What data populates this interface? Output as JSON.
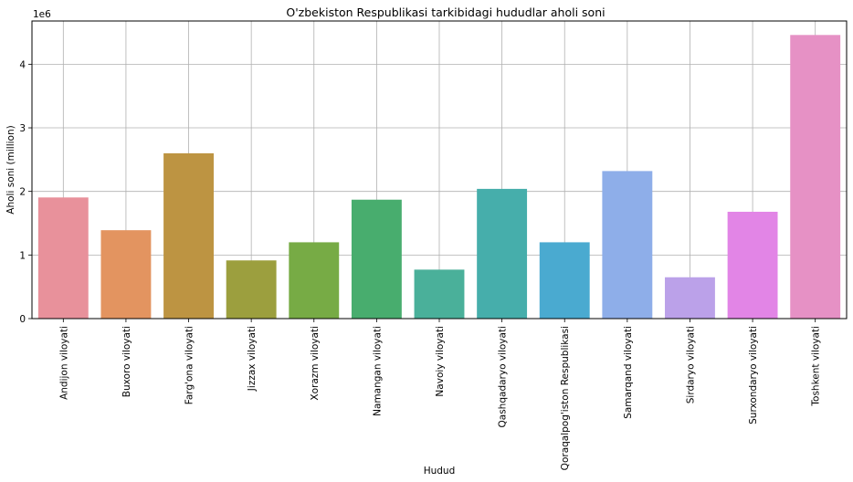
{
  "chart_data": {
    "type": "bar",
    "title": "O'zbekiston Respublikasi tarkibidagi hududlar aholi soni",
    "xlabel": "Hudud",
    "ylabel": "Aholi soni (million)",
    "offset_label": "1e6",
    "categories": [
      "Andijon viloyati",
      "Buxoro viloyati",
      "Farg'ona viloyati",
      "Jizzax viloyati",
      "Xorazm viloyati",
      "Namangan viloyati",
      "Navoiy viloyati",
      "Qashqadaryo viloyati",
      "Qoraqalpog'iston Respublikasi",
      "Samarqand viloyati",
      "Sirdaryo viloyati",
      "Surxondaryo viloyati",
      "Toshkent viloyati"
    ],
    "values": [
      1905000,
      1390000,
      2600000,
      915000,
      1200000,
      1870000,
      770000,
      2040000,
      1200000,
      2320000,
      650000,
      1680000,
      4460000
    ],
    "colors": [
      "#e8919b",
      "#e39460",
      "#bd9442",
      "#9c9f3e",
      "#77ab45",
      "#48ad6e",
      "#4ab09a",
      "#46aeab",
      "#4aaad0",
      "#8eaee9",
      "#bba1e9",
      "#e285e6",
      "#e691c5"
    ],
    "yticks": [
      0,
      1,
      2,
      3,
      4
    ],
    "ylim": [
      0,
      4.68
    ],
    "grid": true
  }
}
